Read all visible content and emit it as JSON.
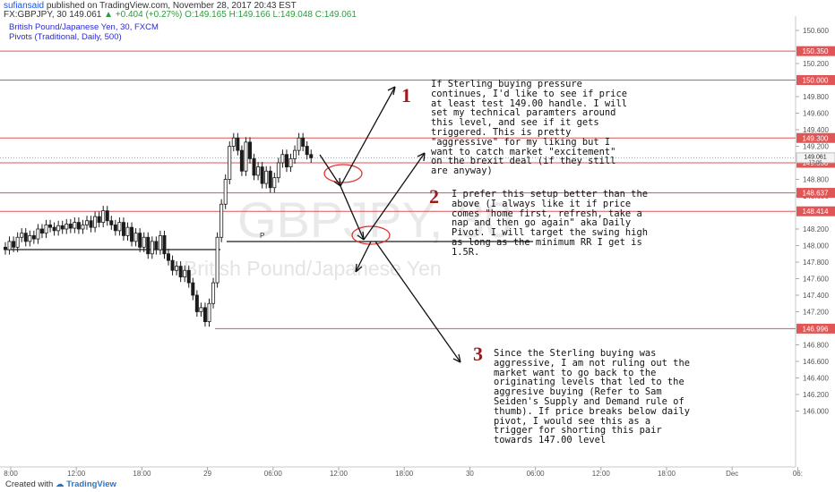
{
  "header": {
    "author": "sufiansaid",
    "published_text": "published on TradingView.com, November 28, 2017 20:43 EST",
    "symbol_line": "FX:GBPJPY, 30",
    "last": "149.061",
    "change": "+0.404 (+0.27%)",
    "ohlc": "O:149.165 H:149.166 L:149.048 C:149.061",
    "title": "British Pound/Japanese Yen, 30, FXCM",
    "indicator": "Pivots (Traditional, Daily, 500)"
  },
  "watermark": {
    "symbol": "GBPJPY, 30",
    "name": "British Pound/Japanese Yen"
  },
  "footer": {
    "created_with": "Created with",
    "brand": "TradingView"
  },
  "notes": [
    {
      "number": "1",
      "text": "If Sterling buying pressure\ncontinues, I'd like to see if price\nat least test 149.00 handle. I will\nset my technical paramters around\nthis level, and see if it gets\ntriggered. This is pretty\n\"aggressive\" for my liking but I\nwant to catch market \"excitement\"\non the brexit deal (if they still\nare anyway)"
    },
    {
      "number": "2",
      "text": "I prefer this setup better than the\nabove (I always like it if price\ncomes \"home first, refresh, take a\nnap and then go again\" aka Daily\nPivot. I will target the swing high\nas long as the minimum RR I get is\n1.5R."
    },
    {
      "number": "3",
      "text": "Since the Sterling buying was\naggressive, I am not ruling out the\nmarket want to go back to the\noriginating levels that led to the\naggresive buying (Refer to Sam\nSeiden's Supply and Demand rule of\nthumb). If price breaks below daily\npivot, I would see this as a\ntrigger for shorting this pair\ntowards 147.00 level"
    }
  ],
  "pivot_label": "P",
  "chart_data": {
    "type": "candlestick",
    "y_axis": {
      "range": [
        145.9,
        150.7
      ],
      "ticks": [
        "150.600",
        "150.200",
        "149.800",
        "149.600",
        "149.400",
        "149.200",
        "148.800",
        "148.600",
        "148.200",
        "148.000",
        "147.800",
        "147.600",
        "147.400",
        "147.200",
        "146.800",
        "146.600",
        "146.400",
        "146.200",
        "146.000"
      ]
    },
    "x_axis": {
      "ticks": [
        "8:00",
        "12:00",
        "18:00",
        "29",
        "06:00",
        "12:00",
        "18:00",
        "30",
        "06:00",
        "12:00",
        "18:00",
        "Dec",
        "06:"
      ]
    },
    "levels": [
      {
        "label": "150.350",
        "value": 150.35
      },
      {
        "label": "150.000",
        "value": 150.0
      },
      {
        "label": "149.300",
        "value": 149.3
      },
      {
        "label": "149.000",
        "value": 149.0
      },
      {
        "label": "148.637",
        "value": 148.637
      },
      {
        "label": "148.414",
        "value": 148.414
      },
      {
        "label": "146.996",
        "value": 146.996
      }
    ],
    "current_price": {
      "label": "149.061",
      "countdown": "17:06",
      "value": 149.061
    },
    "pivot_value": 148.3,
    "colors": {
      "level": "#e05555",
      "price": "#1c1c1c",
      "axis_text": "#555",
      "grid_tag": "#e04848"
    }
  }
}
